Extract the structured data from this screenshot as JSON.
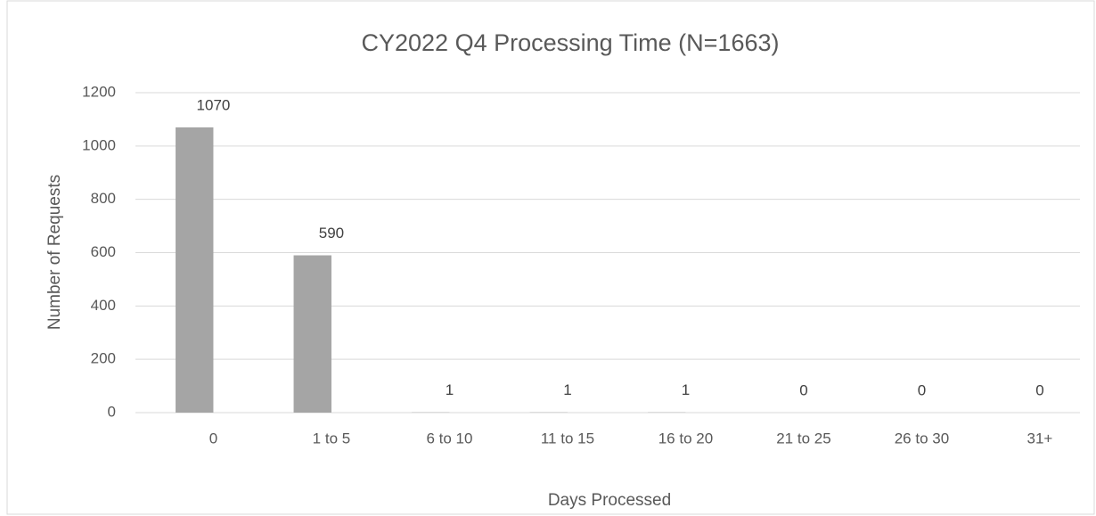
{
  "chart_data": {
    "type": "bar",
    "title": "CY2022 Q4 Processing Time (N=1663)",
    "x_label": "Days Processed",
    "y_label": "Number of Requests",
    "categories": [
      "0",
      "1 to 5",
      "6 to 10",
      "11 to 15",
      "16 to 20",
      "21 to 25",
      "26 to 30",
      "31+"
    ],
    "values": [
      1070,
      590,
      1,
      1,
      1,
      0,
      0,
      0
    ],
    "color": "#a5a5a5",
    "ylim": [
      0,
      1200
    ],
    "yticks": [
      0,
      200,
      400,
      600,
      800,
      1000,
      1200
    ],
    "grid": true
  }
}
